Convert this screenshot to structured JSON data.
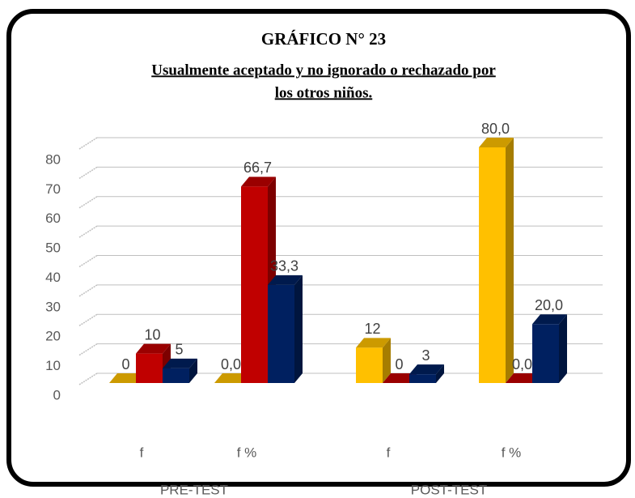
{
  "chart_data": {
    "type": "bar3d",
    "title": "GRÁFICO N° 23",
    "subtitle": [
      "Usualmente aceptado y no ignorado o rechazado por",
      "los otros niños."
    ],
    "categories": [
      "f",
      "f %",
      "f",
      "f %"
    ],
    "groups": [
      "PRE-TEST",
      "POST-TEST"
    ],
    "series": [
      {
        "color": "#ffc000",
        "values": [
          0,
          0.0,
          12,
          80.0
        ],
        "value_labels": [
          "0",
          "0,0",
          "12",
          "80,0"
        ]
      },
      {
        "color": "#c00000",
        "values": [
          10,
          66.7,
          0,
          0.0
        ],
        "value_labels": [
          "10",
          "66,7",
          "0",
          "0,0"
        ]
      },
      {
        "color": "#002060",
        "values": [
          5,
          33.3,
          3,
          20.0
        ],
        "value_labels": [
          "5",
          "33,3",
          "3",
          "20,0"
        ]
      }
    ],
    "ylim": [
      0,
      80
    ],
    "yticks": [
      0,
      10,
      20,
      30,
      40,
      50,
      60,
      70,
      80
    ],
    "grid": true
  }
}
